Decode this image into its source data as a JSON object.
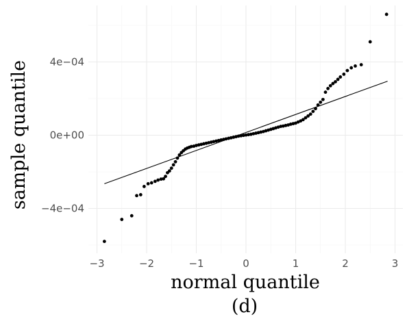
{
  "chart_data": {
    "type": "scatter",
    "title": "",
    "xlabel": "normal quantile",
    "ylabel": "sample quantile",
    "caption": "(d)",
    "xlim": [
      -3,
      3
    ],
    "ylim": [
      -0.0006,
      0.0006
    ],
    "x_ticks": [
      -3,
      -2,
      -1,
      0,
      1,
      2,
      3
    ],
    "x_tick_labels": [
      "−3",
      "−2",
      "−1",
      "0",
      "1",
      "2",
      "3"
    ],
    "y_ticks": [
      -0.0004,
      0,
      0.0004
    ],
    "y_tick_labels": [
      "−4e−04",
      "0e+00",
      "4e−04"
    ],
    "grid": true,
    "reference_line": {
      "x": [
        -2.85,
        2.85
      ],
      "y": [
        -0.000265,
        0.000295
      ]
    },
    "series": [
      {
        "marker": "point",
        "color": "#000000",
        "points": [
          [
            -2.85,
            -0.00058
          ],
          [
            -2.5,
            -0.00046
          ],
          [
            -2.3,
            -0.00044
          ],
          [
            -2.2,
            -0.00033
          ],
          [
            -2.12,
            -0.000325
          ],
          [
            -2.05,
            -0.00028
          ],
          [
            -1.97,
            -0.000265
          ],
          [
            -1.9,
            -0.00026
          ],
          [
            -1.83,
            -0.000252
          ],
          [
            -1.77,
            -0.000245
          ],
          [
            -1.71,
            -0.00024
          ],
          [
            -1.66,
            -0.000238
          ],
          [
            -1.62,
            -0.000225
          ],
          [
            -1.58,
            -0.000205
          ],
          [
            -1.54,
            -0.000195
          ],
          [
            -1.5,
            -0.00018
          ],
          [
            -1.46,
            -0.000162
          ],
          [
            -1.42,
            -0.000145
          ],
          [
            -1.38,
            -0.000125
          ],
          [
            -1.34,
            -0.000108
          ],
          [
            -1.3,
            -9.5e-05
          ],
          [
            -1.26,
            -8.5e-05
          ],
          [
            -1.22,
            -7.6e-05
          ],
          [
            -1.18,
            -7e-05
          ],
          [
            -1.14,
            -6.6e-05
          ],
          [
            -1.1,
            -6.2e-05
          ],
          [
            -1.05,
            -6e-05
          ],
          [
            -1.0,
            -5.6e-05
          ],
          [
            -0.95,
            -5.3e-05
          ],
          [
            -0.9,
            -5e-05
          ],
          [
            -0.85,
            -4.7e-05
          ],
          [
            -0.8,
            -4.4e-05
          ],
          [
            -0.75,
            -4.1e-05
          ],
          [
            -0.7,
            -3.8e-05
          ],
          [
            -0.65,
            -3.5e-05
          ],
          [
            -0.6,
            -3.2e-05
          ],
          [
            -0.55,
            -2.9e-05
          ],
          [
            -0.5,
            -2.6e-05
          ],
          [
            -0.45,
            -2.3e-05
          ],
          [
            -0.4,
            -2e-05
          ],
          [
            -0.35,
            -1.7e-05
          ],
          [
            -0.3,
            -1.4e-05
          ],
          [
            -0.25,
            -1.1e-05
          ],
          [
            -0.2,
            -8e-06
          ],
          [
            -0.15,
            -5e-06
          ],
          [
            -0.1,
            -3e-06
          ],
          [
            -0.05,
            -1e-06
          ],
          [
            0.0,
            1e-06
          ],
          [
            0.05,
            3e-06
          ],
          [
            0.1,
            5e-06
          ],
          [
            0.15,
            8e-06
          ],
          [
            0.2,
            1.1e-05
          ],
          [
            0.25,
            1.4e-05
          ],
          [
            0.3,
            1.7e-05
          ],
          [
            0.35,
            2e-05
          ],
          [
            0.4,
            2.4e-05
          ],
          [
            0.45,
            2.8e-05
          ],
          [
            0.5,
            3.2e-05
          ],
          [
            0.55,
            3.6e-05
          ],
          [
            0.6,
            4e-05
          ],
          [
            0.65,
            4.4e-05
          ],
          [
            0.7,
            4.8e-05
          ],
          [
            0.75,
            5e-05
          ],
          [
            0.8,
            5.3e-05
          ],
          [
            0.85,
            5.6e-05
          ],
          [
            0.9,
            6e-05
          ],
          [
            0.95,
            6.3e-05
          ],
          [
            1.0,
            6.6e-05
          ],
          [
            1.05,
            7.2e-05
          ],
          [
            1.1,
            7.8e-05
          ],
          [
            1.15,
            8.5e-05
          ],
          [
            1.2,
            9.5e-05
          ],
          [
            1.25,
            0.000105
          ],
          [
            1.3,
            0.000115
          ],
          [
            1.35,
            0.00013
          ],
          [
            1.4,
            0.000145
          ],
          [
            1.45,
            0.000165
          ],
          [
            1.5,
            0.00018
          ],
          [
            1.55,
            0.000195
          ],
          [
            1.6,
            0.000235
          ],
          [
            1.65,
            0.000255
          ],
          [
            1.7,
            0.00027
          ],
          [
            1.75,
            0.000282
          ],
          [
            1.8,
            0.000292
          ],
          [
            1.85,
            0.000305
          ],
          [
            1.9,
            0.000318
          ],
          [
            1.97,
            0.000333
          ],
          [
            2.04,
            0.000353
          ],
          [
            2.12,
            0.000368
          ],
          [
            2.2,
            0.000378
          ],
          [
            2.32,
            0.000385
          ],
          [
            2.5,
            0.00051
          ],
          [
            2.83,
            0.00066
          ]
        ]
      }
    ]
  }
}
